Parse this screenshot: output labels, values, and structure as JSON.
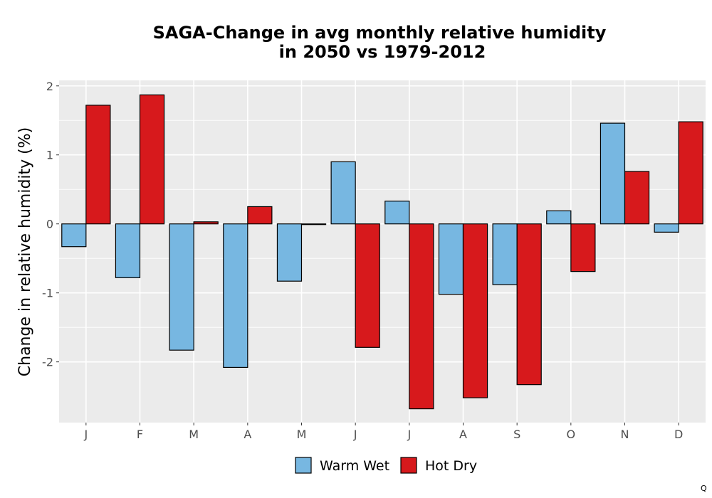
{
  "chart_data": {
    "type": "bar",
    "title": [
      "SAGA-Change in avg monthly relative humidity",
      "in 2050 vs 1979-2012"
    ],
    "xlabel": "",
    "ylabel": "Change in relative humidity (%)",
    "categories": [
      "J",
      "F",
      "M",
      "A",
      "M",
      "J",
      "J",
      "A",
      "S",
      "O",
      "N",
      "D"
    ],
    "series": [
      {
        "name": "Warm Wet",
        "color": "#77b7e1",
        "values": [
          -0.33,
          -0.78,
          -1.83,
          -2.08,
          -0.83,
          0.9,
          0.33,
          -1.02,
          -0.88,
          0.19,
          1.46,
          -0.12
        ]
      },
      {
        "name": "Hot Dry",
        "color": "#d7191c",
        "values": [
          1.72,
          1.87,
          0.03,
          0.25,
          -0.01,
          -1.79,
          -2.68,
          -2.52,
          -2.33,
          -0.69,
          0.76,
          1.48
        ]
      }
    ],
    "ylim": [
      -2.88,
      2.08
    ],
    "yticks": [
      2,
      1,
      0,
      -1,
      -2
    ],
    "ytick_labels": [
      "2",
      "1",
      "0",
      "-1",
      "-2"
    ],
    "grid": true,
    "legend_position": "bottom",
    "panel_background": "#ebebeb"
  },
  "corner_mark": "Q"
}
